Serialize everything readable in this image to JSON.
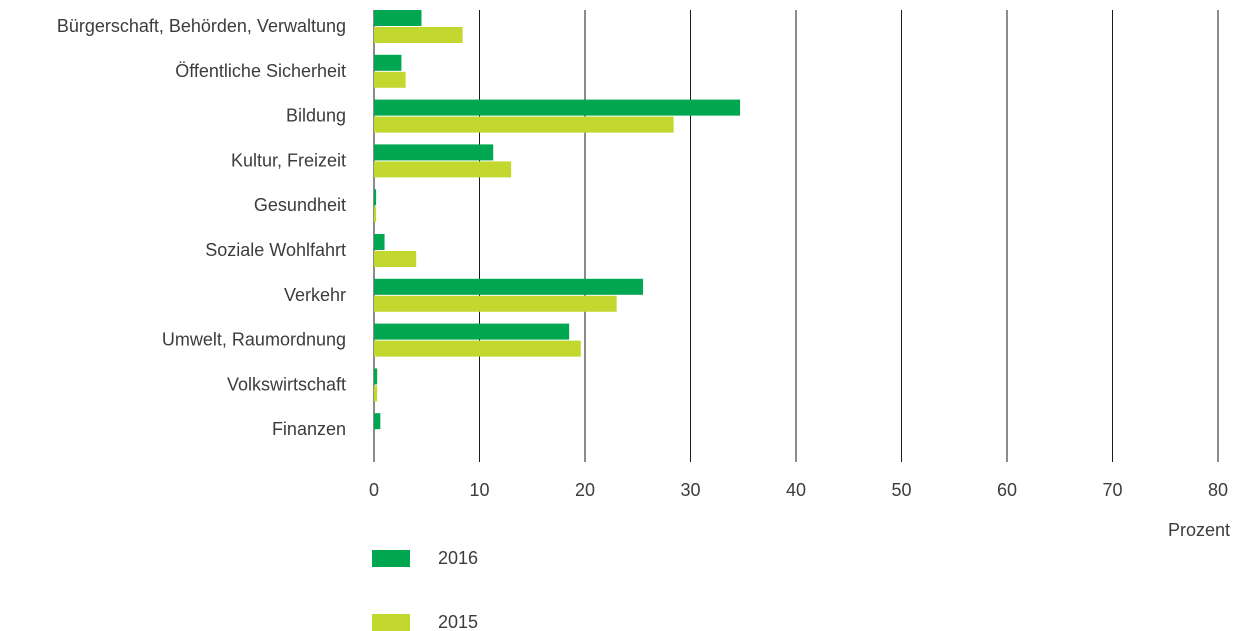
{
  "chart_data": {
    "type": "bar",
    "orientation": "horizontal",
    "categories": [
      "Bürgerschaft, Behörden, Verwaltung",
      "Öffentliche Sicherheit",
      "Bildung",
      "Kultur, Freizeit",
      "Gesundheit",
      "Soziale Wohlfahrt",
      "Verkehr",
      "Umwelt, Raumordnung",
      "Volkswirtschaft",
      "Finanzen"
    ],
    "series": [
      {
        "name": "2016",
        "color": "#00a650",
        "values": [
          4.5,
          2.6,
          34.7,
          11.3,
          0.2,
          1.0,
          25.5,
          18.5,
          0.3,
          0.6
        ]
      },
      {
        "name": "2015",
        "color": "#c2d82e",
        "values": [
          8.4,
          3.0,
          28.4,
          13.0,
          0.2,
          4.0,
          23.0,
          19.6,
          0.3,
          0.0
        ]
      }
    ],
    "xlim": [
      0,
      80
    ],
    "xticks": [
      0,
      10,
      20,
      30,
      40,
      50,
      60,
      70,
      80
    ],
    "xlabel": "Prozent",
    "title": "",
    "grid": "vertical",
    "legend_position": "bottom-left"
  }
}
